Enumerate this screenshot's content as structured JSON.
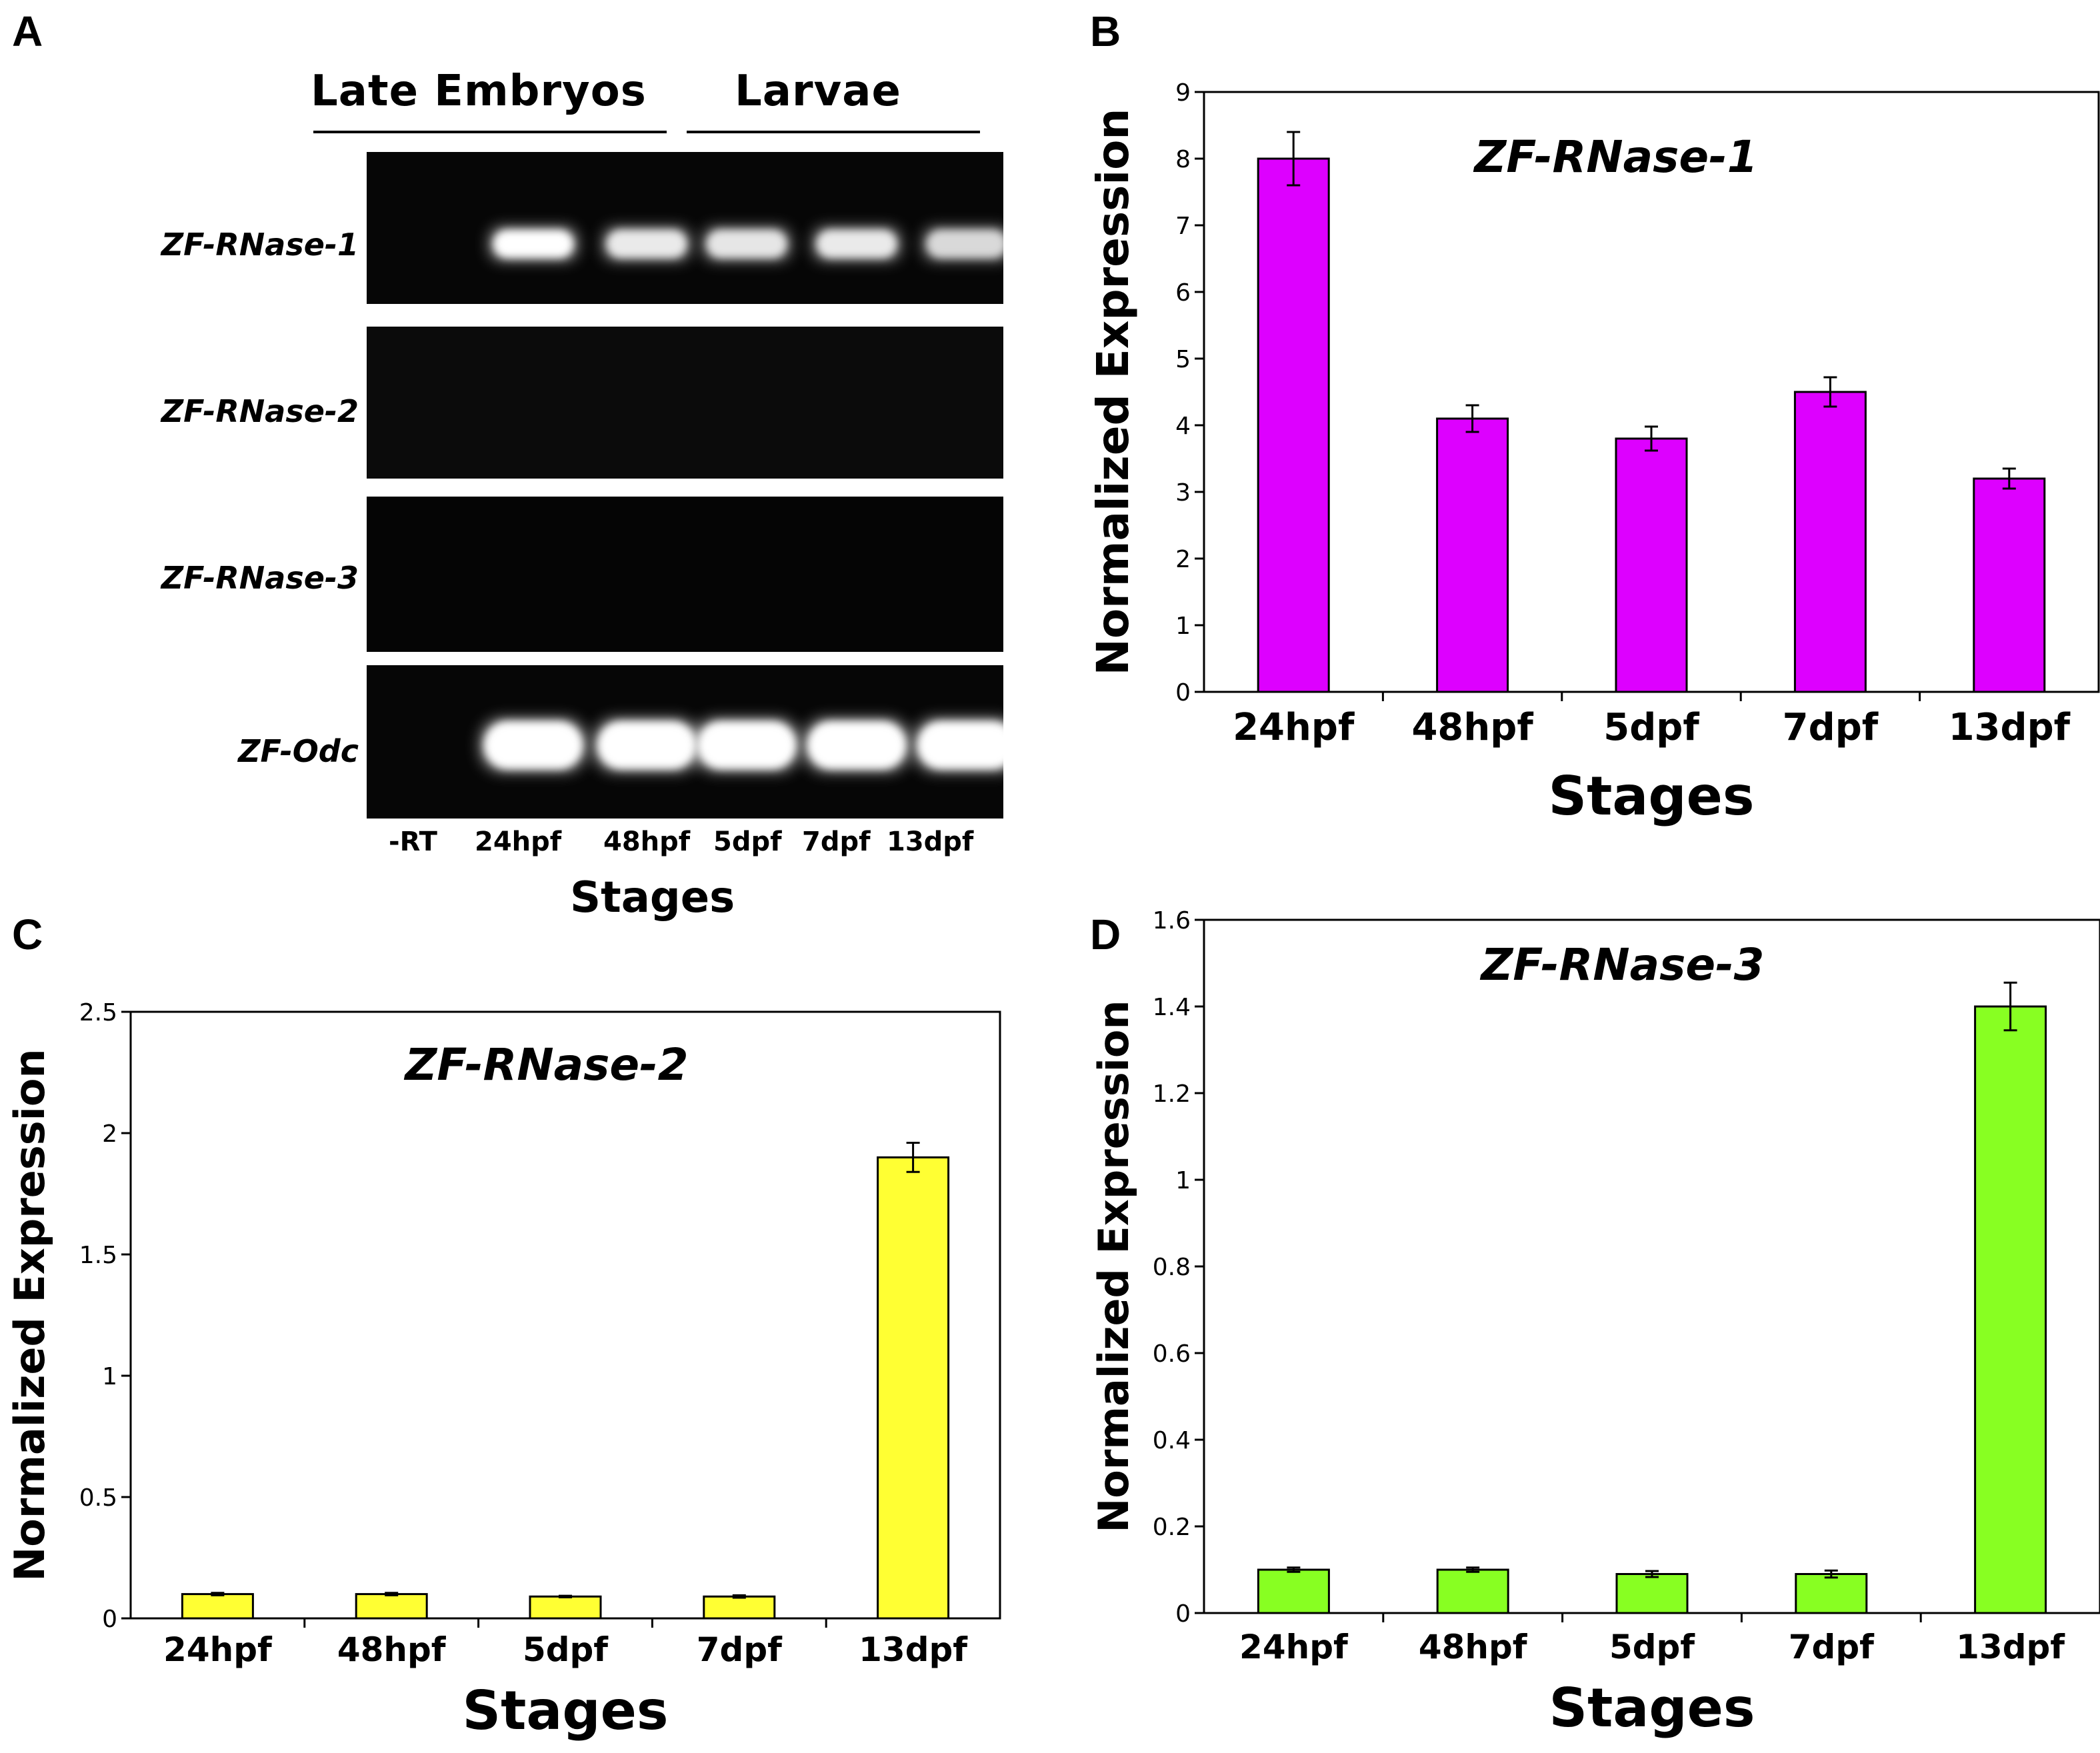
{
  "panels": {
    "A": {
      "letter": "A",
      "groups": [
        "Late Embryos",
        "Larvae"
      ],
      "genes": [
        "ZF-RNase-1",
        "ZF-RNase-2",
        "ZF-RNase-3",
        "ZF-Odc"
      ],
      "lanes": [
        "-RT",
        "24hpf",
        "48hpf",
        "5dpf",
        "7dpf",
        "13dpf"
      ],
      "xlabel": "Stages"
    },
    "B": {
      "letter": "B"
    },
    "C": {
      "letter": "C"
    },
    "D": {
      "letter": "D"
    }
  },
  "chart_data": [
    {
      "panel": "B",
      "type": "bar",
      "title": "ZF-RNase-1",
      "xlabel": "Stages",
      "ylabel": "Normalized Expression",
      "categories": [
        "24hpf",
        "48hpf",
        "5dpf",
        "7dpf",
        "13dpf"
      ],
      "values": [
        8.0,
        4.1,
        3.8,
        4.5,
        3.2
      ],
      "errors": [
        0.4,
        0.2,
        0.18,
        0.22,
        0.15
      ],
      "ylim": [
        0,
        9
      ],
      "yticks": [
        0,
        1,
        2,
        3,
        4,
        5,
        6,
        7,
        8,
        9
      ],
      "ytick_labels": [
        "0",
        "1",
        "2",
        "3",
        "4",
        "5",
        "6",
        "7",
        "8",
        "9"
      ],
      "color": "#dd00ff",
      "grid": false
    },
    {
      "panel": "C",
      "type": "bar",
      "title": "ZF-RNase-2",
      "xlabel": "Stages",
      "ylabel": "Normalized Expression",
      "categories": [
        "24hpf",
        "48hpf",
        "5dpf",
        "7dpf",
        "13dpf"
      ],
      "values": [
        0.1,
        0.1,
        0.09,
        0.09,
        1.9
      ],
      "errors": [
        0.005,
        0.005,
        0.003,
        0.005,
        0.06
      ],
      "ylim": [
        0,
        2.5
      ],
      "yticks": [
        0,
        0.5,
        1,
        1.5,
        2,
        2.5
      ],
      "ytick_labels": [
        "0",
        "0.5",
        "1",
        "1.5",
        "2",
        "2.5"
      ],
      "color": "#ffff33",
      "grid": false
    },
    {
      "panel": "D",
      "type": "bar",
      "title": "ZF-RNase-3",
      "xlabel": "Stages",
      "ylabel": "Normalized Expression",
      "categories": [
        "24hpf",
        "48hpf",
        "5dpf",
        "7dpf",
        "13dpf"
      ],
      "values": [
        0.1,
        0.1,
        0.09,
        0.09,
        1.4
      ],
      "errors": [
        0.005,
        0.005,
        0.007,
        0.008,
        0.055
      ],
      "ylim": [
        0,
        1.6
      ],
      "yticks": [
        0,
        0.2,
        0.4,
        0.6,
        0.8,
        1,
        1.2,
        1.4,
        1.6
      ],
      "ytick_labels": [
        "0",
        "0.2",
        "0.4",
        "0.6",
        "0.8",
        "1",
        "1.2",
        "1.4",
        "1.6"
      ],
      "color": "#88ff22",
      "grid": false
    }
  ],
  "gel_bands": {
    "ZF-RNase-1": [
      0,
      1.0,
      0.75,
      0.7,
      0.75,
      0.55
    ],
    "ZF-RNase-2": [
      0,
      0,
      0,
      0,
      0,
      0
    ],
    "ZF-RNase-3": [
      0,
      0,
      0,
      0,
      0,
      0
    ],
    "ZF-Odc": [
      0,
      1.0,
      1.0,
      1.0,
      1.0,
      1.0
    ]
  }
}
